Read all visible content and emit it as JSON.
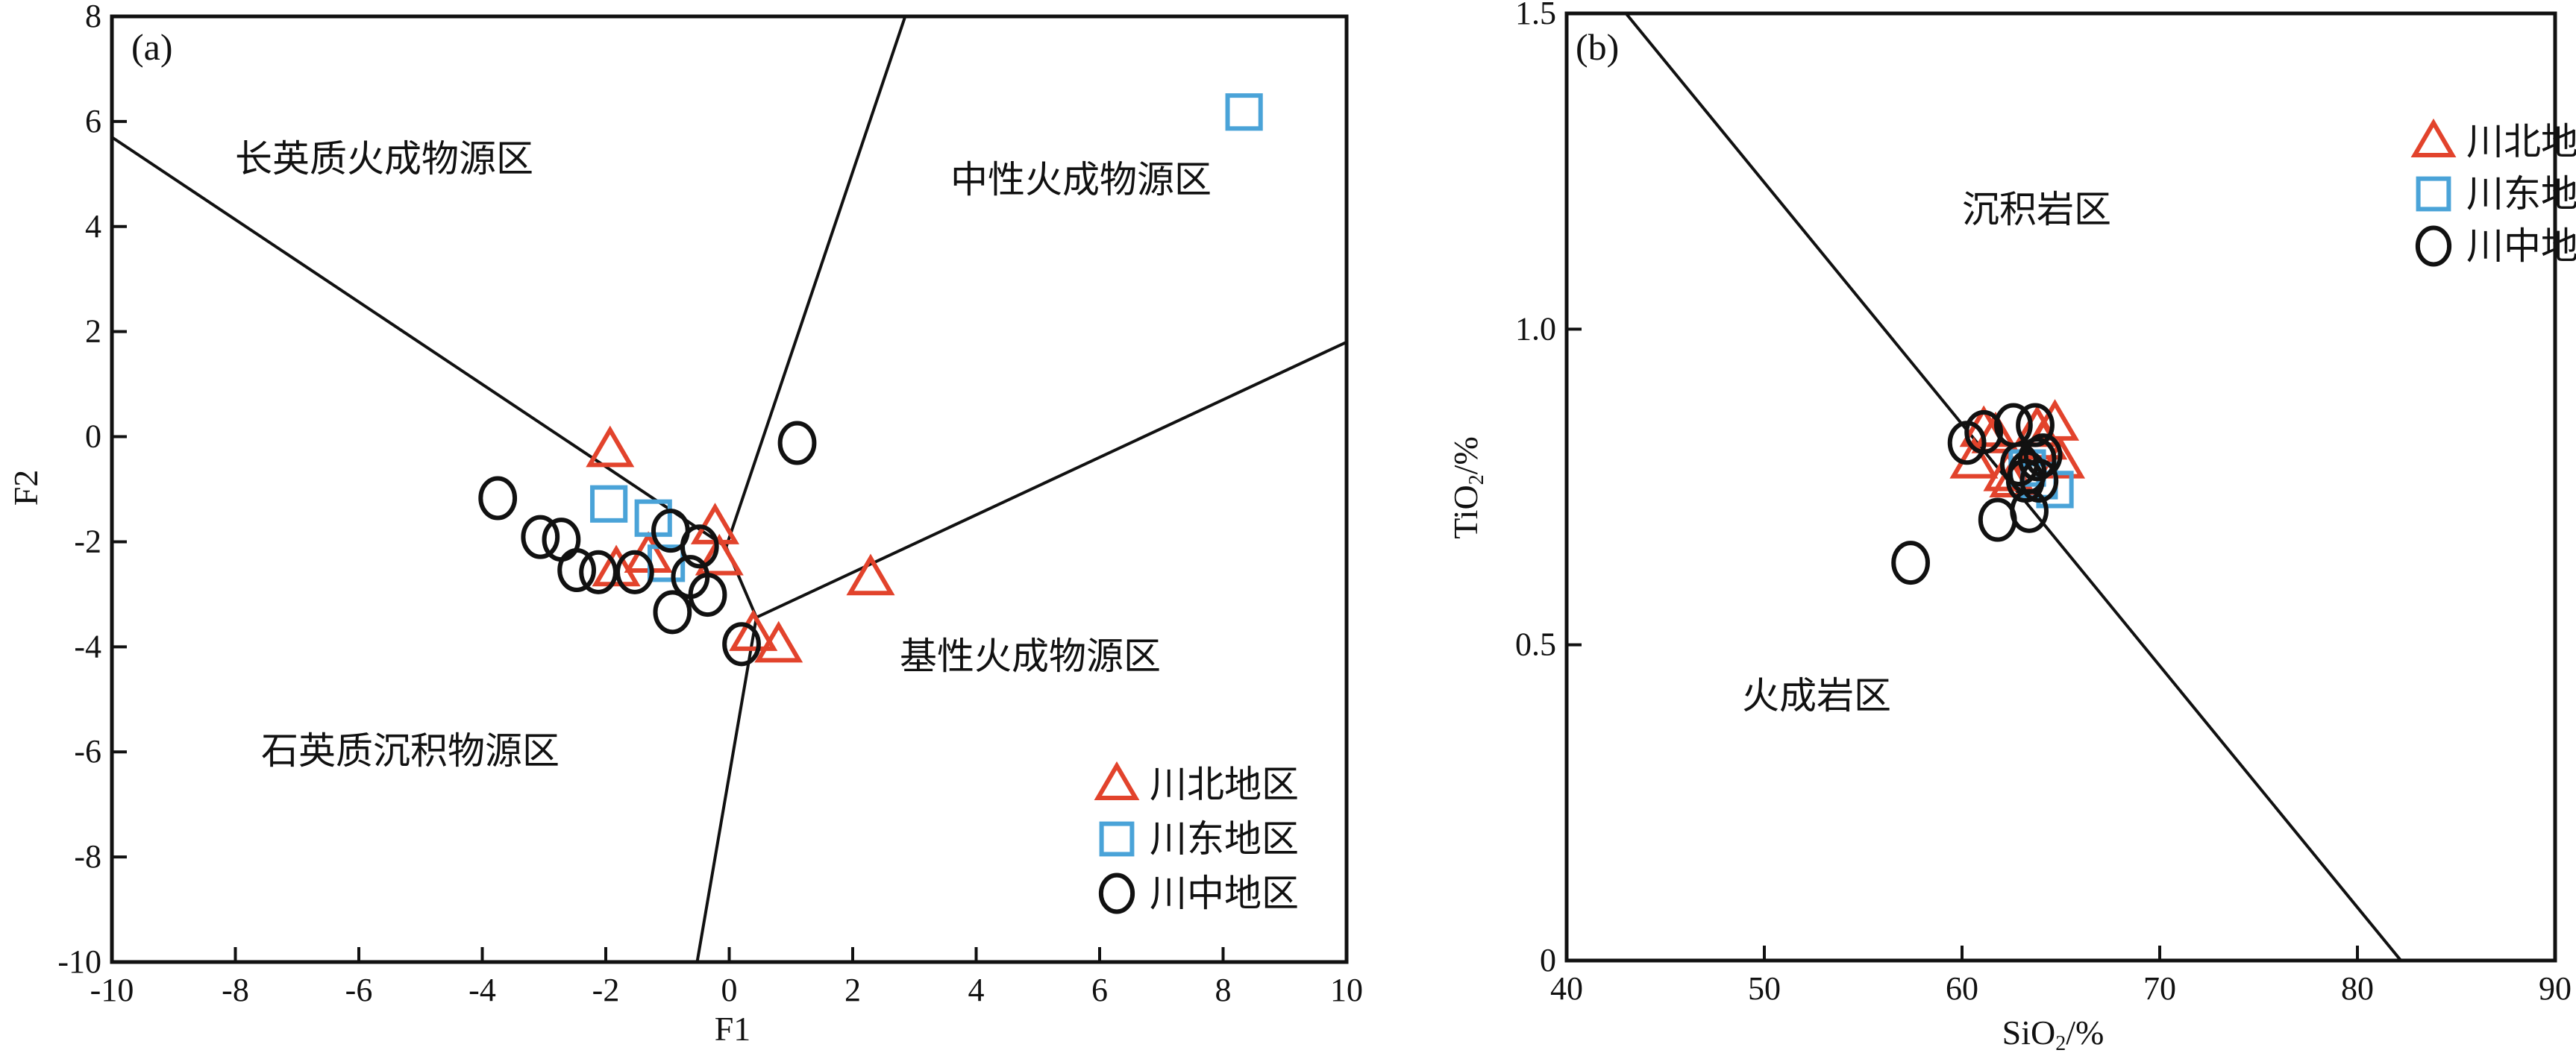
{
  "colors": {
    "chuanbei": "#e2432c",
    "chuandong": "#4aa3d8",
    "chuanzhong": "#111111"
  },
  "legend": [
    "川北地区",
    "川东地区",
    "川中地区"
  ],
  "chart_data": [
    {
      "type": "scatter",
      "panel_label": "(a)",
      "xlabel": "F1",
      "ylabel": "F2",
      "xlim": [
        -10,
        10
      ],
      "ylim": [
        -10,
        8
      ],
      "xticks": [
        "-10",
        "-8",
        "-6",
        "-4",
        "-2",
        "0",
        "2",
        "4",
        "6",
        "8",
        "10"
      ],
      "yticks": [
        "8",
        "6",
        "4",
        "2",
        "0",
        "-2",
        "-4",
        "-6",
        "-8",
        "-10"
      ],
      "grid": false,
      "legend_position": "bottom-right",
      "region_labels": [
        "长英质火成物源区",
        "中性火成物源区",
        "基性火成物源区",
        "石英质沉积物源区"
      ],
      "boundary_lines": [
        [
          [
            -10,
            5.7
          ],
          [
            -0.05,
            -2.1
          ]
        ],
        [
          [
            2.85,
            8
          ],
          [
            -0.05,
            -2.1
          ]
        ],
        [
          [
            -0.05,
            -2.1
          ],
          [
            0.44,
            -3.44
          ]
        ],
        [
          [
            0.44,
            -3.44
          ],
          [
            10,
            1.8
          ]
        ],
        [
          [
            0.44,
            -3.44
          ],
          [
            -0.52,
            -10
          ]
        ]
      ],
      "series": [
        {
          "name": "川北地区",
          "marker": "triangle",
          "points": [
            [
              -1.93,
              -0.26
            ],
            [
              -0.23,
              -1.73
            ],
            [
              -0.16,
              -2.32
            ],
            [
              -1.31,
              -2.27
            ],
            [
              -1.83,
              -2.53
            ],
            [
              2.29,
              -2.7
            ],
            [
              0.39,
              -3.76
            ],
            [
              0.8,
              -3.98
            ]
          ]
        },
        {
          "name": "川东地区",
          "marker": "square",
          "points": [
            [
              -1.95,
              -1.28
            ],
            [
              -1.23,
              -1.55
            ],
            [
              -1.02,
              -2.41
            ],
            [
              8.34,
              6.18
            ]
          ]
        },
        {
          "name": "川中地区",
          "marker": "circle",
          "points": [
            [
              1.1,
              -0.12
            ],
            [
              -3.75,
              -1.17
            ],
            [
              -3.06,
              -1.91
            ],
            [
              -2.72,
              -1.96
            ],
            [
              -2.47,
              -2.54
            ],
            [
              -2.12,
              -2.58
            ],
            [
              -1.53,
              -2.58
            ],
            [
              -0.95,
              -1.79
            ],
            [
              -0.48,
              -2.09
            ],
            [
              -0.63,
              -2.67
            ],
            [
              -0.35,
              -3.01
            ],
            [
              -0.92,
              -3.34
            ],
            [
              0.2,
              -3.95
            ]
          ]
        }
      ]
    },
    {
      "type": "scatter",
      "panel_label": "(b)",
      "xlabel": "SiO2/%",
      "ylabel": "TiO2/%",
      "xlim": [
        40,
        90
      ],
      "ylim": [
        0,
        1.5
      ],
      "xticks": [
        "40",
        "50",
        "60",
        "70",
        "80",
        "90"
      ],
      "yticks": [
        "1.5",
        "1.0",
        "0.5",
        "0"
      ],
      "grid": false,
      "legend_position": "top-right",
      "region_labels": [
        "沉积岩区",
        "火成岩区"
      ],
      "boundary_lines": [
        [
          [
            43,
            1.5
          ],
          [
            82.2,
            0
          ]
        ]
      ],
      "series": [
        {
          "name": "川北地区",
          "marker": "triangle",
          "points": [
            [
              61.1,
              0.84
            ],
            [
              60.6,
              0.79
            ],
            [
              63.8,
              0.84
            ],
            [
              64.7,
              0.85
            ],
            [
              65.0,
              0.79
            ],
            [
              62.3,
              0.77
            ],
            [
              62.6,
              0.76
            ],
            [
              61.7,
              0.83
            ],
            [
              64.1,
              0.82
            ]
          ]
        },
        {
          "name": "川东地区",
          "marker": "square",
          "points": [
            [
              64.7,
              0.746
            ],
            [
              63.3,
              0.78
            ],
            [
              63.9,
              0.76
            ]
          ]
        },
        {
          "name": "川中地区",
          "marker": "circle",
          "points": [
            [
              60.25,
              0.82
            ],
            [
              61.1,
              0.837
            ],
            [
              62.6,
              0.848
            ],
            [
              63.7,
              0.848
            ],
            [
              62.9,
              0.786
            ],
            [
              63.8,
              0.794
            ],
            [
              63.3,
              0.773
            ],
            [
              63.2,
              0.76
            ],
            [
              63.9,
              0.76
            ],
            [
              61.8,
              0.698
            ],
            [
              63.4,
              0.712
            ],
            [
              57.4,
              0.63
            ],
            [
              64.1,
              0.8
            ]
          ]
        }
      ]
    }
  ]
}
